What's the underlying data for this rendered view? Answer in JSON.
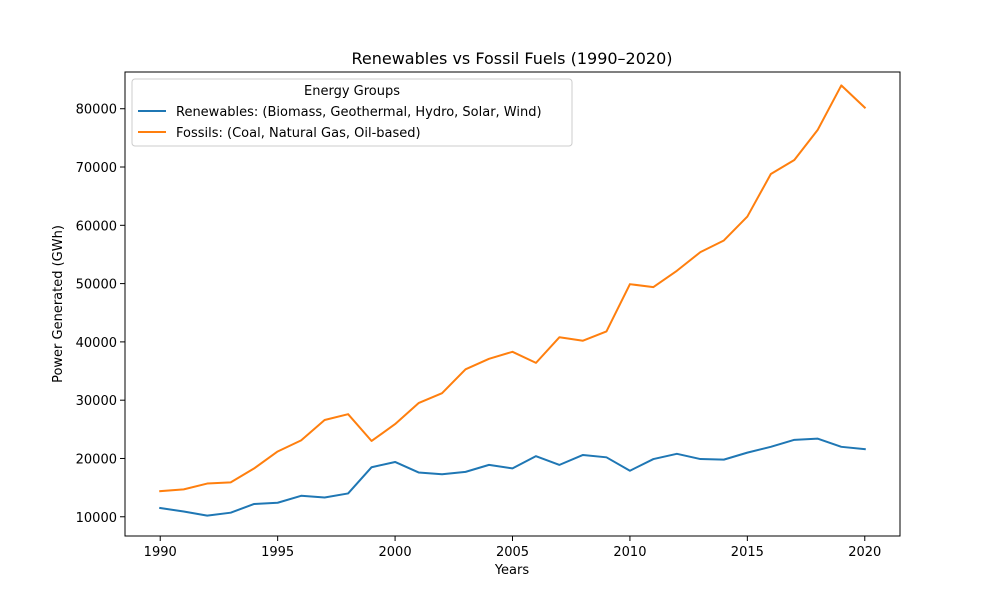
{
  "chart_data": {
    "type": "line",
    "title": "Renewables vs Fossil Fuels (1990–2020)",
    "xlabel": "Years",
    "ylabel": "Power Generated (GWh)",
    "xlim": [
      1988.5,
      2021.5
    ],
    "ylim": [
      6700,
      86300
    ],
    "xticks": [
      1990,
      1995,
      2000,
      2005,
      2010,
      2015,
      2020
    ],
    "yticks": [
      10000,
      20000,
      30000,
      40000,
      50000,
      60000,
      70000,
      80000
    ],
    "grid": false,
    "legend": {
      "title": "Energy Groups",
      "placement": "top-left"
    },
    "x": [
      1990,
      1991,
      1992,
      1993,
      1994,
      1995,
      1996,
      1997,
      1998,
      1999,
      2000,
      2001,
      2002,
      2003,
      2004,
      2005,
      2006,
      2007,
      2008,
      2009,
      2010,
      2011,
      2012,
      2013,
      2014,
      2015,
      2016,
      2017,
      2018,
      2019,
      2020
    ],
    "series": [
      {
        "name": "Renewables: (Biomass, Geothermal, Hydro, Solar, Wind)",
        "color": "#1f77b4",
        "values": [
          11500,
          10900,
          10200,
          10700,
          12200,
          12400,
          13600,
          13300,
          14000,
          18500,
          19400,
          17600,
          17300,
          17700,
          18900,
          18300,
          20400,
          18900,
          20600,
          20200,
          17900,
          19900,
          20800,
          19900,
          19800,
          21000,
          22000,
          23200,
          23400,
          22000,
          21600
        ]
      },
      {
        "name": "Fossils: (Coal, Natural Gas, Oil-based)",
        "color": "#ff7f0e",
        "values": [
          14400,
          14700,
          15700,
          15900,
          18300,
          21200,
          23100,
          26600,
          27600,
          23000,
          25900,
          29500,
          31200,
          35300,
          37100,
          38300,
          36400,
          40800,
          40200,
          41800,
          49900,
          49400,
          52200,
          55400,
          57400,
          61500,
          68800,
          71200,
          76400,
          84000,
          80200
        ]
      }
    ]
  }
}
